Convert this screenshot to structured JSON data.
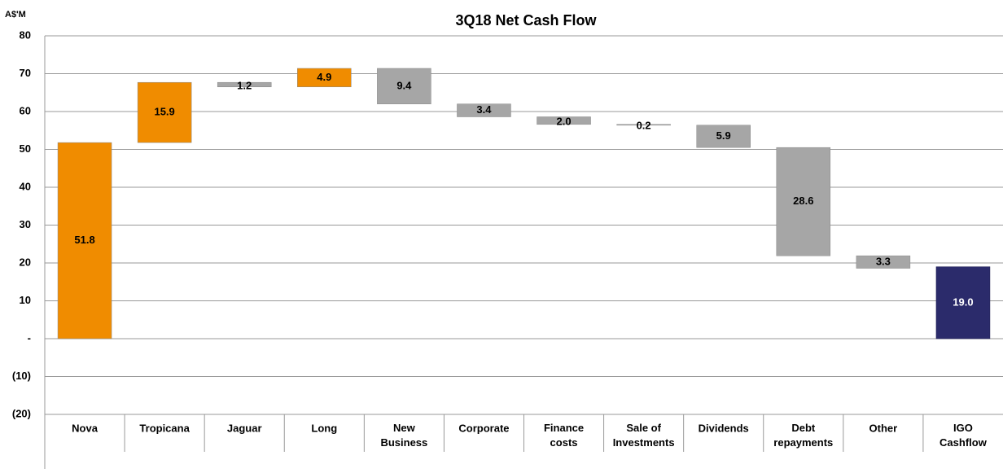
{
  "chart_data": {
    "type": "waterfall",
    "title": "3Q18 Net Cash Flow",
    "y_label": "A$'M",
    "categories": [
      "Nova",
      "Tropicana",
      "Jaguar",
      "Long",
      "New Business",
      "Corporate",
      "Finance costs",
      "Sale of Investments",
      "Dividends",
      "Debt repayments",
      "Other",
      "IGO Cashflow"
    ],
    "values": [
      51.8,
      15.9,
      -1.2,
      4.9,
      -9.4,
      -3.4,
      -2.0,
      -0.2,
      -5.9,
      -28.6,
      -3.3,
      19.0
    ],
    "value_labels": [
      "51.8",
      "15.9",
      "1.2",
      "4.9",
      "9.4",
      "3.4",
      "2.0",
      "0.2",
      "5.9",
      "28.6",
      "3.3",
      "19.0"
    ],
    "measure": [
      "relative",
      "relative",
      "relative",
      "relative",
      "relative",
      "relative",
      "relative",
      "relative",
      "relative",
      "relative",
      "relative",
      "total"
    ],
    "colors": {
      "increase": "#f08c00",
      "decrease": "#a6a6a6",
      "total": "#2b2b6b"
    },
    "ylim": [
      -20,
      80
    ],
    "yticks": [
      {
        "value": -20,
        "label": "(20)"
      },
      {
        "value": -10,
        "label": "(10)"
      },
      {
        "value": 0,
        "label": "-"
      },
      10,
      20,
      30,
      40,
      50,
      60,
      70,
      80
    ],
    "grid": true
  }
}
